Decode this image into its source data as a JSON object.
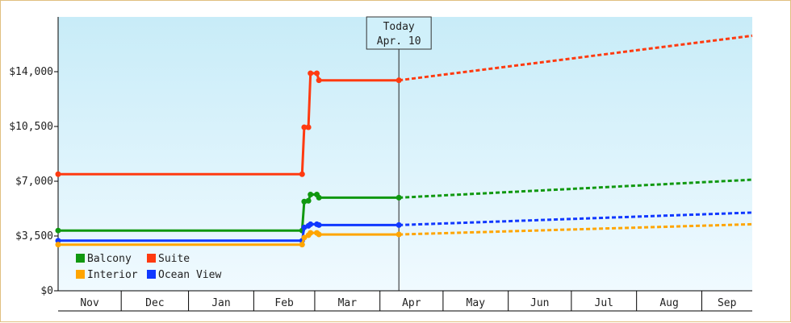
{
  "chart_data": {
    "type": "line",
    "title": "",
    "xlabel": "",
    "ylabel": "",
    "ylim": [
      0,
      17500
    ],
    "yticks": [
      {
        "value": 0,
        "label": "$0"
      },
      {
        "value": 3500,
        "label": "$3,500"
      },
      {
        "value": 7000,
        "label": "$7,000"
      },
      {
        "value": 10500,
        "label": "$10,500"
      },
      {
        "value": 14000,
        "label": "$14,000"
      }
    ],
    "x_range": [
      "2023-10-31",
      "2024-09-25"
    ],
    "months": [
      {
        "label": "Nov",
        "start": "2023-10-31",
        "end": "2023-11-30"
      },
      {
        "label": "Dec",
        "start": "2023-11-30",
        "end": "2024-01-01"
      },
      {
        "label": "Jan",
        "start": "2024-01-01",
        "end": "2024-02-01"
      },
      {
        "label": "Feb",
        "start": "2024-02-01",
        "end": "2024-03-01"
      },
      {
        "label": "Mar",
        "start": "2024-03-01",
        "end": "2024-04-01"
      },
      {
        "label": "Apr",
        "start": "2024-04-01",
        "end": "2024-05-01"
      },
      {
        "label": "May",
        "start": "2024-05-01",
        "end": "2024-06-01"
      },
      {
        "label": "Jun",
        "start": "2024-06-01",
        "end": "2024-07-01"
      },
      {
        "label": "Jul",
        "start": "2024-07-01",
        "end": "2024-08-01"
      },
      {
        "label": "Aug",
        "start": "2024-08-01",
        "end": "2024-09-01"
      },
      {
        "label": "Sep",
        "start": "2024-09-01",
        "end": "2024-09-25"
      }
    ],
    "today": {
      "date": "2024-04-10",
      "line1": "Today",
      "line2": "Apr. 10"
    },
    "series": [
      {
        "name": "Suite",
        "color": "#ff3a10",
        "actual": [
          {
            "x": "2023-10-31",
            "y": 7450
          },
          {
            "x": "2024-02-24",
            "y": 7450
          },
          {
            "x": "2024-02-25",
            "y": 10450
          },
          {
            "x": "2024-02-27",
            "y": 10450
          },
          {
            "x": "2024-02-28",
            "y": 13900
          },
          {
            "x": "2024-03-02",
            "y": 13900
          },
          {
            "x": "2024-03-03",
            "y": 13450
          },
          {
            "x": "2024-04-10",
            "y": 13450
          }
        ],
        "projected": [
          {
            "x": "2024-04-10",
            "y": 13450
          },
          {
            "x": "2024-09-25",
            "y": 16300
          }
        ]
      },
      {
        "name": "Balcony",
        "color": "#109810",
        "actual": [
          {
            "x": "2023-10-31",
            "y": 3850
          },
          {
            "x": "2024-02-24",
            "y": 3850
          },
          {
            "x": "2024-02-25",
            "y": 5700
          },
          {
            "x": "2024-02-27",
            "y": 5750
          },
          {
            "x": "2024-02-28",
            "y": 6150
          },
          {
            "x": "2024-03-02",
            "y": 6150
          },
          {
            "x": "2024-03-03",
            "y": 5950
          },
          {
            "x": "2024-04-10",
            "y": 5950
          }
        ],
        "projected": [
          {
            "x": "2024-04-10",
            "y": 5950
          },
          {
            "x": "2024-09-25",
            "y": 7100
          }
        ]
      },
      {
        "name": "Ocean View",
        "color": "#1038ff",
        "actual": [
          {
            "x": "2023-10-31",
            "y": 3200
          },
          {
            "x": "2024-02-24",
            "y": 3200
          },
          {
            "x": "2024-02-25",
            "y": 4050
          },
          {
            "x": "2024-02-27",
            "y": 4150
          },
          {
            "x": "2024-02-28",
            "y": 4250
          },
          {
            "x": "2024-03-02",
            "y": 4250
          },
          {
            "x": "2024-03-03",
            "y": 4200
          },
          {
            "x": "2024-04-10",
            "y": 4200
          }
        ],
        "projected": [
          {
            "x": "2024-04-10",
            "y": 4200
          },
          {
            "x": "2024-09-25",
            "y": 5000
          }
        ]
      },
      {
        "name": "Interior",
        "color": "#ffa500",
        "actual": [
          {
            "x": "2023-10-31",
            "y": 2950
          },
          {
            "x": "2024-02-24",
            "y": 2950
          },
          {
            "x": "2024-02-25",
            "y": 3400
          },
          {
            "x": "2024-02-27",
            "y": 3550
          },
          {
            "x": "2024-02-28",
            "y": 3700
          },
          {
            "x": "2024-03-02",
            "y": 3700
          },
          {
            "x": "2024-03-03",
            "y": 3600
          },
          {
            "x": "2024-04-10",
            "y": 3600
          }
        ],
        "projected": [
          {
            "x": "2024-04-10",
            "y": 3600
          },
          {
            "x": "2024-09-25",
            "y": 4250
          }
        ]
      }
    ],
    "legend": {
      "placement": "bottom-left",
      "items": [
        {
          "name": "Balcony",
          "color": "#109810"
        },
        {
          "name": "Suite",
          "color": "#ff3a10"
        },
        {
          "name": "Interior",
          "color": "#ffa500"
        },
        {
          "name": "Ocean View",
          "color": "#1038ff"
        }
      ]
    },
    "grid": false,
    "colors": {
      "plot_top": "#c8ecf8",
      "plot_bottom": "#f0faff",
      "border": "#e0c080"
    }
  }
}
